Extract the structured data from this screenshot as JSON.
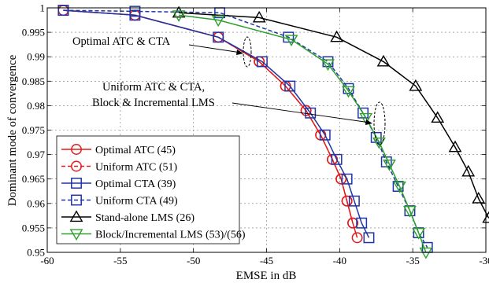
{
  "chart_data": {
    "type": "line",
    "xlabel": "EMSE in dB",
    "ylabel": "Dominant mode of convergence",
    "xlim": [
      -60,
      -30
    ],
    "ylim": [
      0.95,
      1.0
    ],
    "x_ticks": [
      "-60",
      "-55",
      "-50",
      "-45",
      "-40",
      "-35",
      "-30"
    ],
    "y_ticks": [
      "0.95",
      "0.955",
      "0.96",
      "0.965",
      "0.97",
      "0.975",
      "0.98",
      "0.985",
      "0.99",
      "0.995",
      "1"
    ],
    "grid": true,
    "legend_position": "bottom-left",
    "annotations": [
      {
        "text": "Optimal ATC & CTA"
      },
      {
        "text": "Uniform ATC & CTA,"
      },
      {
        "text": "Block & Incremental LMS"
      }
    ],
    "series": [
      {
        "name": "Optimal ATC (45)",
        "color": "#e31a1c",
        "marker": "circle",
        "dash": false,
        "x": [
          -58.9,
          -54.0,
          -48.3,
          -45.5,
          -43.7,
          -42.3,
          -41.3,
          -40.5,
          -39.9,
          -39.5,
          -39.1,
          -38.8
        ],
        "y": [
          0.9995,
          0.9985,
          0.994,
          0.989,
          0.984,
          0.979,
          0.974,
          0.969,
          0.965,
          0.9605,
          0.956,
          0.953
        ]
      },
      {
        "name": "Uniform ATC (51)",
        "color": "#e31a1c",
        "marker": "circle",
        "dash": true,
        "x": [
          -58.9,
          -54.0,
          -48.3,
          -45.5,
          -43.7,
          -42.3,
          -41.3,
          -40.5,
          -39.9,
          -39.5,
          -39.1
        ],
        "y": [
          0.9995,
          0.9985,
          0.994,
          0.989,
          0.984,
          0.979,
          0.974,
          0.969,
          0.965,
          0.9605,
          0.956
        ]
      },
      {
        "name": "Optimal CTA (39)",
        "color": "#1f35a5",
        "marker": "square",
        "dash": false,
        "x": [
          -58.9,
          -54.0,
          -48.3,
          -45.3,
          -43.4,
          -42.0,
          -41.0,
          -40.2,
          -39.5,
          -39.0,
          -38.5,
          -38.0
        ],
        "y": [
          0.9995,
          0.9985,
          0.994,
          0.989,
          0.984,
          0.9785,
          0.974,
          0.969,
          0.965,
          0.9605,
          0.956,
          0.953
        ]
      },
      {
        "name": "Uniform CTA (49)",
        "color": "#1f35a5",
        "marker": "square",
        "dash": true,
        "x": [
          -58.9,
          -54.0,
          -48.2,
          -43.5,
          -40.8,
          -39.4,
          -38.4,
          -37.5,
          -36.8,
          -36.0,
          -35.2,
          -34.6,
          -34.0
        ],
        "y": [
          0.9995,
          0.9993,
          0.999,
          0.994,
          0.989,
          0.9835,
          0.9785,
          0.9735,
          0.9685,
          0.9635,
          0.9585,
          0.954,
          0.951
        ]
      },
      {
        "name": "Stand-alone LMS (26)",
        "color": "#000000",
        "marker": "triangle-up",
        "dash": false,
        "x": [
          -51.0,
          -45.5,
          -40.2,
          -37.0,
          -34.8,
          -33.3,
          -32.1,
          -31.2,
          -30.5,
          -29.8
        ],
        "y": [
          0.999,
          0.998,
          0.994,
          0.989,
          0.984,
          0.9775,
          0.9715,
          0.9665,
          0.961,
          0.957
        ]
      },
      {
        "name": "Block/Incremental LMS (53)/(56)",
        "color": "#2ca02c",
        "marker": "triangle-down",
        "dash": false,
        "x": [
          -51.0,
          -48.3,
          -43.3,
          -40.8,
          -39.4,
          -38.2,
          -37.3,
          -36.6,
          -35.9,
          -35.2,
          -34.6,
          -34.1
        ],
        "y": [
          0.9985,
          0.9975,
          0.9935,
          0.9885,
          0.983,
          0.9775,
          0.9725,
          0.968,
          0.9635,
          0.9585,
          0.954,
          0.95
        ]
      }
    ]
  }
}
